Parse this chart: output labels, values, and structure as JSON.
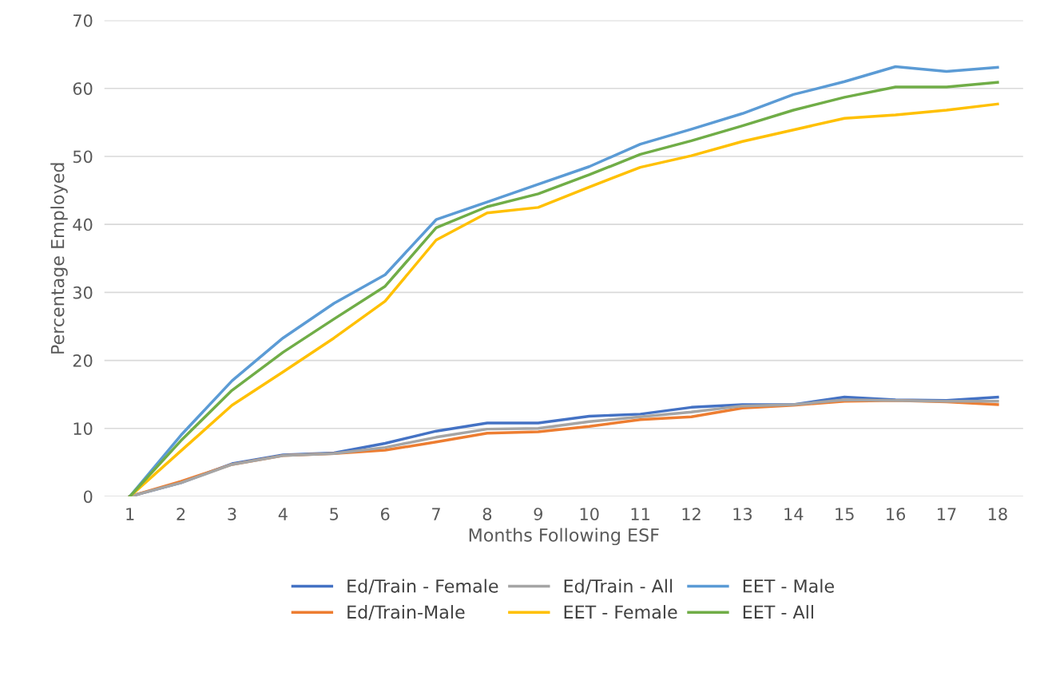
{
  "chart_data": {
    "type": "line",
    "xlabel": "Months Following ESF",
    "ylabel": "Percentage Employed",
    "categories": [
      "1",
      "2",
      "3",
      "4",
      "5",
      "6",
      "7",
      "8",
      "9",
      "10",
      "11",
      "12",
      "13",
      "14",
      "15",
      "16",
      "17",
      "18"
    ],
    "series": [
      {
        "name": "Ed/Train - Female",
        "color": "#4472c4",
        "values": [
          0,
          2.0,
          4.8,
          6.1,
          6.4,
          7.8,
          9.6,
          10.8,
          10.8,
          11.8,
          12.1,
          13.1,
          13.5,
          13.5,
          14.6,
          14.2,
          14.1,
          14.6
        ]
      },
      {
        "name": "Ed/Train-Male",
        "color": "#ed7d31",
        "values": [
          0,
          2.2,
          4.7,
          6.0,
          6.3,
          6.8,
          8.0,
          9.3,
          9.5,
          10.3,
          11.3,
          11.7,
          13.0,
          13.4,
          14.0,
          14.1,
          13.9,
          13.5
        ]
      },
      {
        "name": "Ed/Train - All",
        "color": "#a5a5a5",
        "values": [
          0,
          2.0,
          4.7,
          6.0,
          6.3,
          7.2,
          8.7,
          9.9,
          10.0,
          11.0,
          11.7,
          12.4,
          13.3,
          13.5,
          14.2,
          14.1,
          14.0,
          14.0
        ]
      },
      {
        "name": "EET - Female",
        "color": "#ffc000",
        "values": [
          0,
          6.7,
          13.4,
          18.3,
          23.3,
          28.7,
          37.7,
          41.7,
          42.5,
          45.5,
          48.4,
          50.1,
          52.2,
          53.9,
          55.6,
          56.1,
          56.8,
          57.7
        ]
      },
      {
        "name": "EET - Male",
        "color": "#5b9bd5",
        "values": [
          0,
          9.0,
          17.0,
          23.3,
          28.4,
          32.6,
          40.7,
          43.3,
          45.9,
          48.5,
          51.8,
          54.0,
          56.3,
          59.1,
          61.0,
          63.2,
          62.5,
          63.1
        ]
      },
      {
        "name": "EET - All",
        "color": "#70ad47",
        "values": [
          0,
          8.2,
          15.6,
          21.2,
          26.1,
          30.9,
          39.5,
          42.6,
          44.5,
          47.3,
          50.3,
          52.3,
          54.5,
          56.8,
          58.7,
          60.2,
          60.2,
          60.9
        ]
      }
    ],
    "ylim": [
      0,
      70
    ],
    "yticks": [
      0,
      10,
      20,
      30,
      40,
      50,
      60,
      70
    ],
    "grid": "y",
    "legend": "bottom",
    "marker": "none",
    "line_style": "solid"
  }
}
